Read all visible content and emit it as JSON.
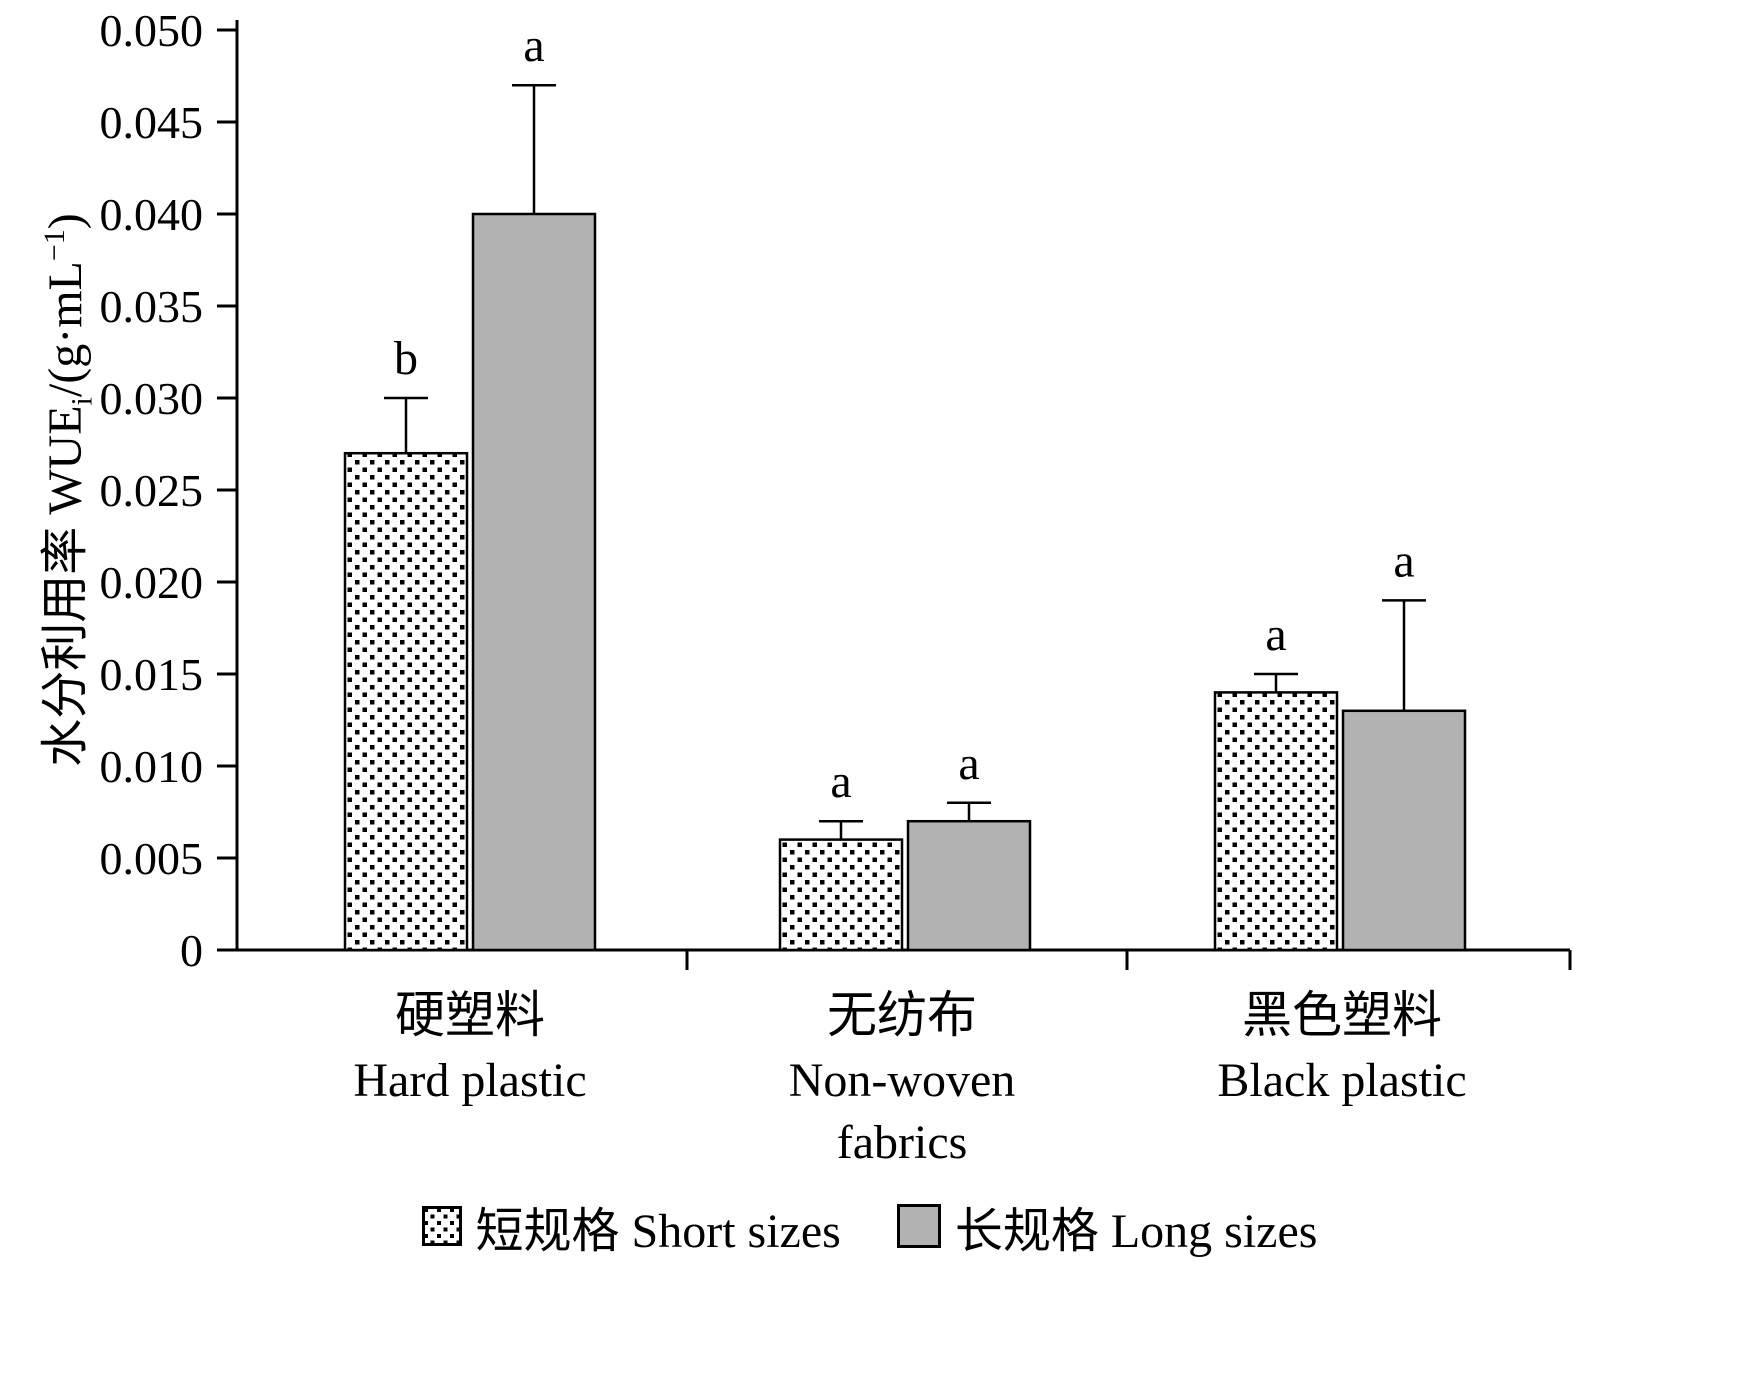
{
  "chart_data": {
    "type": "bar",
    "title": "",
    "ylabel": {
      "zh": "水分利用率",
      "main": " WUE",
      "sub": "i",
      "unit_open": "/(g·mL",
      "sup": "−1",
      "unit_close": ")"
    },
    "ylim": [
      0,
      0.05
    ],
    "ytick_labels": [
      "0",
      "0.005",
      "0.010",
      "0.015",
      "0.020",
      "0.025",
      "0.030",
      "0.035",
      "0.040",
      "0.045",
      "0.050"
    ],
    "grid": false,
    "legend_position": "bottom",
    "categories": [
      {
        "zh": "硬塑料",
        "en": [
          "Hard plastic"
        ]
      },
      {
        "zh": "无纺布",
        "en": [
          "Non-woven",
          "fabrics"
        ]
      },
      {
        "zh": "黑色塑料",
        "en": [
          "Black plastic"
        ]
      }
    ],
    "series": [
      {
        "name": "短规格 Short sizes",
        "style": "dotted",
        "values": [
          0.027,
          0.006,
          0.014
        ],
        "errors_plus": [
          0.003,
          0.001,
          0.001
        ],
        "sig_letters": [
          "b",
          "a",
          "a"
        ]
      },
      {
        "name": "长规格 Long sizes",
        "style": "gray",
        "fill": "#b2b2b2",
        "values": [
          0.04,
          0.007,
          0.013
        ],
        "errors_plus": [
          0.007,
          0.001,
          0.006
        ],
        "sig_letters": [
          "a",
          "a",
          "a"
        ]
      }
    ]
  }
}
